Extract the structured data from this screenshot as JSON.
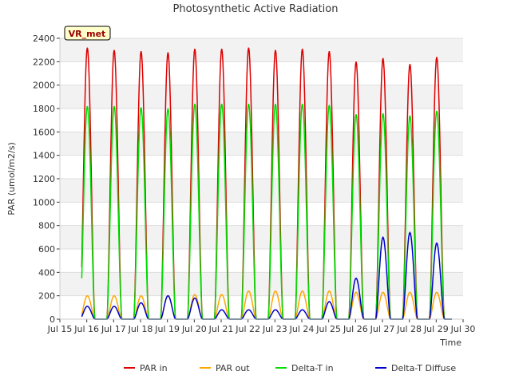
{
  "chart_data": {
    "type": "line",
    "title": "Photosynthetic Active Radiation",
    "xlabel": "Time",
    "ylabel": "PAR (umol/m2/s)",
    "station_badge": "VR_met",
    "x_ticks": [
      "Jul 15",
      "Jul 16",
      "Jul 17",
      "Jul 18",
      "Jul 19",
      "Jul 20",
      "Jul 21",
      "Jul 22",
      "Jul 23",
      "Jul 24",
      "Jul 25",
      "Jul 26",
      "Jul 27",
      "Jul 28",
      "Jul 29",
      "Jul 30"
    ],
    "y_ticks": [
      0,
      200,
      400,
      600,
      800,
      1000,
      1200,
      1400,
      1600,
      1800,
      2000,
      2200,
      2400
    ],
    "xlim": [
      "Jul 15",
      "Jul 30"
    ],
    "ylim": [
      0,
      2400
    ],
    "grid": "horizontal bands",
    "legend_position": "bottom",
    "days": [
      "Jul 15",
      "Jul 16",
      "Jul 17",
      "Jul 18",
      "Jul 19",
      "Jul 20",
      "Jul 21",
      "Jul 22",
      "Jul 23",
      "Jul 24",
      "Jul 25",
      "Jul 26",
      "Jul 27",
      "Jul 28"
    ],
    "series": [
      {
        "name": "PAR in",
        "color": "#dd0000",
        "daily_peak": [
          2320,
          2300,
          2290,
          2280,
          2310,
          2310,
          2320,
          2300,
          2310,
          2290,
          2200,
          2230,
          2180,
          2240
        ]
      },
      {
        "name": "PAR out",
        "color": "#ffa500",
        "daily_peak": [
          200,
          200,
          200,
          200,
          210,
          210,
          240,
          240,
          240,
          240,
          230,
          230,
          230,
          230
        ]
      },
      {
        "name": "Delta-T in",
        "color": "#00dd00",
        "daily_peak": [
          1820,
          1820,
          1810,
          1800,
          1840,
          1840,
          1840,
          1840,
          1840,
          1830,
          1750,
          1760,
          1740,
          1780
        ]
      },
      {
        "name": "Delta-T Diffuse",
        "color": "#0000cc",
        "daily_peak": [
          110,
          110,
          140,
          200,
          180,
          80,
          80,
          80,
          80,
          150,
          350,
          700,
          740,
          650
        ]
      }
    ]
  }
}
